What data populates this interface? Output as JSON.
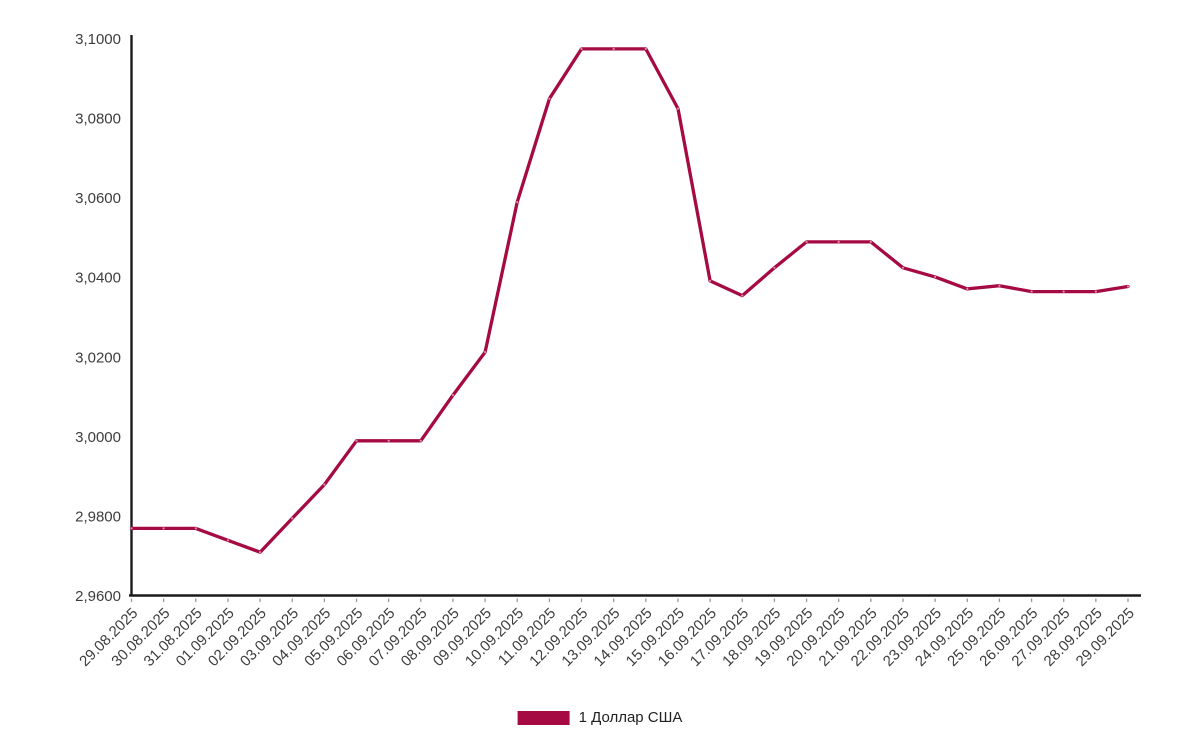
{
  "chart_data": {
    "type": "line",
    "title": "",
    "xlabel": "",
    "ylabel": "",
    "x": [
      "29.08.2025",
      "30.08.2025",
      "31.08.2025",
      "01.09.2025",
      "02.09.2025",
      "03.09.2025",
      "04.09.2025",
      "05.09.2025",
      "06.09.2025",
      "07.09.2025",
      "08.09.2025",
      "09.09.2025",
      "10.09.2025",
      "11.09.2025",
      "12.09.2025",
      "13.09.2025",
      "14.09.2025",
      "15.09.2025",
      "16.09.2025",
      "17.09.2025",
      "18.09.2025",
      "19.09.2025",
      "20.09.2025",
      "21.09.2025",
      "22.09.2025",
      "23.09.2025",
      "24.09.2025",
      "25.09.2025",
      "26.09.2025",
      "27.09.2025",
      "28.09.2025",
      "29.09.2025"
    ],
    "series": [
      {
        "name": "1 Доллар США",
        "color": "#a60a43",
        "values": [
          2.977,
          2.977,
          2.977,
          2.974,
          2.971,
          2.9795,
          2.988,
          2.999,
          2.999,
          2.999,
          3.0105,
          3.0213,
          3.059,
          3.085,
          3.0975,
          3.0975,
          3.0975,
          3.0825,
          3.0392,
          3.0355,
          3.0425,
          3.049,
          3.049,
          3.049,
          3.0425,
          3.0402,
          3.0372,
          3.038,
          3.0365,
          3.0365,
          3.0365,
          3.0378
        ]
      }
    ],
    "ylim": [
      2.96,
      3.1
    ],
    "yticks": [
      {
        "value": 3.1,
        "label": "3,1000"
      },
      {
        "value": 3.08,
        "label": "3,0800"
      },
      {
        "value": 3.06,
        "label": "3,0600"
      },
      {
        "value": 3.04,
        "label": "3,0400"
      },
      {
        "value": 3.02,
        "label": "3,0200"
      },
      {
        "value": 3.0,
        "label": "3,0000"
      },
      {
        "value": 2.98,
        "label": "2,9800"
      },
      {
        "value": 2.96,
        "label": "2,9600"
      }
    ],
    "grid": false,
    "legend_position": "bottom",
    "marker": "dot"
  },
  "legend": {
    "label": "1 Доллар США",
    "swatch_color": "#a60a43"
  },
  "colors": {
    "line": "#a60a43",
    "axis": "#1a1a1a",
    "tick": "#999999",
    "axis_label": "#3d3d3d",
    "background": "#ffffff"
  }
}
